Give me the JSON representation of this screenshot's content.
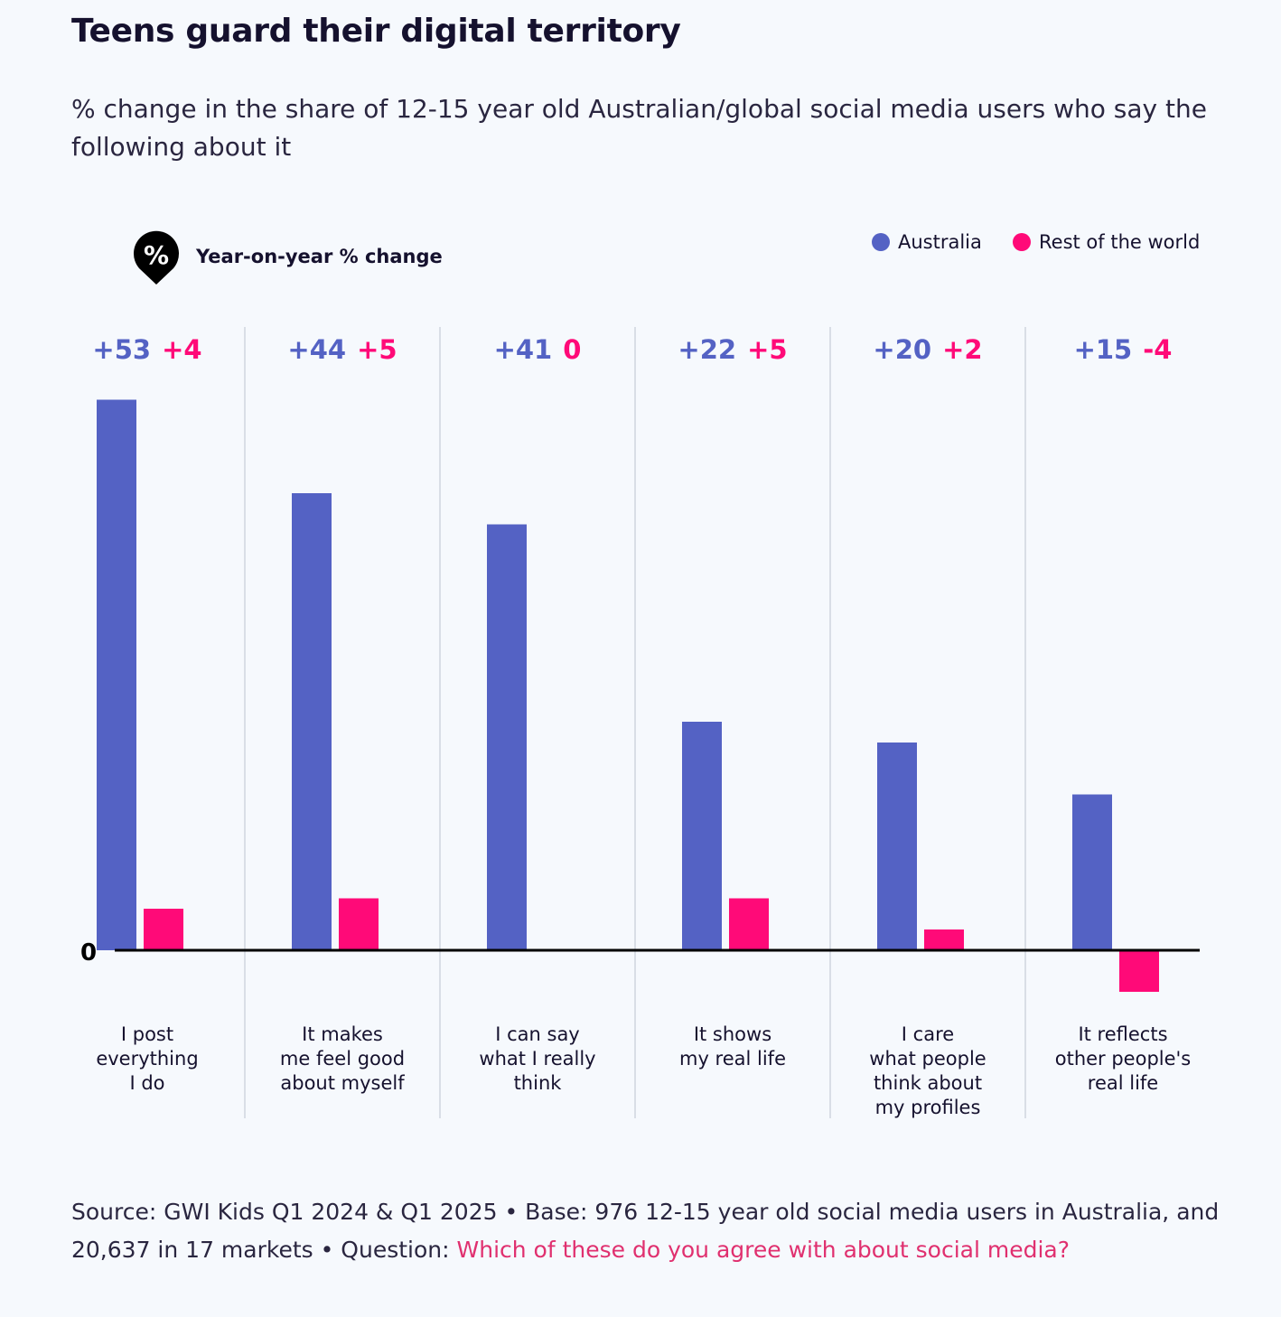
{
  "chart_data": {
    "type": "bar",
    "title": "Teens guard their digital territory",
    "subtitle": "% change in the share of 12-15 year old Australian/global social media users who say the following about it",
    "measure_label": "Year-on-year % change",
    "badge_icon": "percent-pin-icon",
    "badge_symbol": "%",
    "zero_label": "0",
    "categories": [
      [
        "I post",
        "everything",
        "I do"
      ],
      [
        "It makes",
        "me feel good",
        "about myself"
      ],
      [
        "I can say",
        "what I really",
        "think"
      ],
      [
        "It shows",
        "my real life"
      ],
      [
        "I care",
        "what people",
        "think about",
        "my profiles"
      ],
      [
        "It reflects",
        "other people's",
        "real life"
      ]
    ],
    "series": [
      {
        "name": "Australia",
        "color": "#5462c4",
        "values": [
          53,
          44,
          41,
          22,
          20,
          15
        ],
        "labels": [
          "+53",
          "+44",
          "+41",
          "+22",
          "+20",
          "+15"
        ]
      },
      {
        "name": "Rest of the world",
        "color": "#ff0a78",
        "values": [
          4,
          5,
          0,
          5,
          2,
          -4
        ],
        "labels": [
          "+4",
          "+5",
          "0",
          "+5",
          "+2",
          "-4"
        ]
      }
    ],
    "legend_position": "top-right"
  },
  "source": {
    "prefix": "Source: GWI Kids Q1 2024 & Q1 2025 • Base: 976 12-15 year old social media users in Australia, and 20,637 in 17 markets • Question: ",
    "question": "Which of these do you agree with about social media?"
  }
}
